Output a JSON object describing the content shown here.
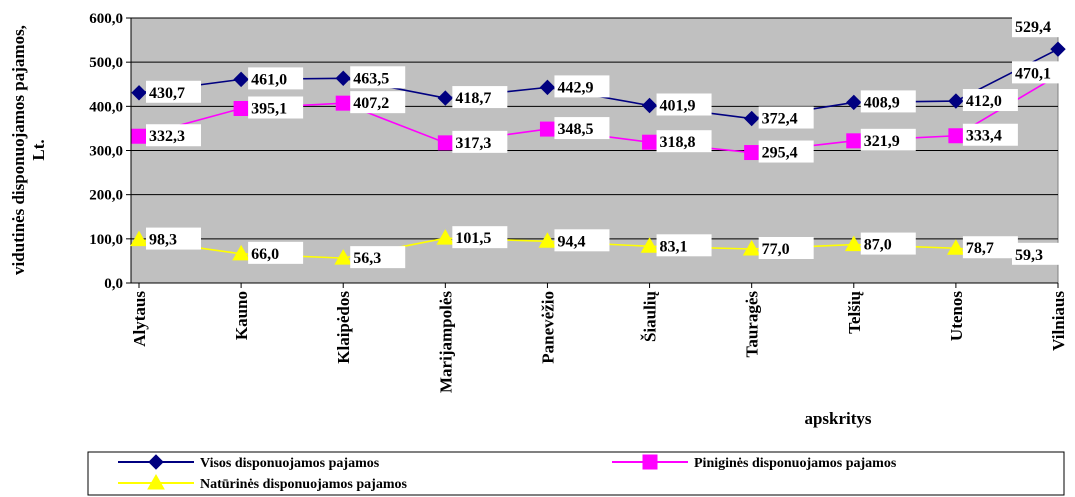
{
  "chart_data": {
    "type": "line",
    "title": "",
    "xlabel": "apskritys",
    "ylabel_line1": "vidutinės disponuojamos pajamos,",
    "ylabel_line2": "Lt.",
    "ylim": [
      0,
      600
    ],
    "yticks": [
      "0,0",
      "100,0",
      "200,0",
      "300,0",
      "400,0",
      "500,0",
      "600,0"
    ],
    "grid": true,
    "legend_position": "bottom",
    "categories": [
      "Alytaus",
      "Kauno",
      "Klaipėdos",
      "Marijampolės",
      "Panevėžio",
      "Šiaulių",
      "Tauragės",
      "Telšių",
      "Utenos",
      "Vilniaus"
    ],
    "series": [
      {
        "name": "Visos disponuojamos pajamos",
        "color": "#000080",
        "marker": "diamond",
        "values": [
          430.7,
          461.0,
          463.5,
          418.7,
          442.9,
          401.9,
          372.4,
          408.9,
          412.0,
          529.4
        ],
        "labels": [
          "430,7",
          "461,0",
          "463,5",
          "418,7",
          "442,9",
          "401,9",
          "372,4",
          "408,9",
          "412,0",
          "529,4"
        ]
      },
      {
        "name": "Piniginės disponuojamos pajamos",
        "color": "#ff00ff",
        "marker": "square",
        "values": [
          332.3,
          395.1,
          407.2,
          317.3,
          348.5,
          318.8,
          295.4,
          321.9,
          333.4,
          470.1
        ],
        "labels": [
          "332,3",
          "395,1",
          "407,2",
          "317,3",
          "348,5",
          "318,8",
          "295,4",
          "321,9",
          "333,4",
          "470,1"
        ]
      },
      {
        "name": "Natūrinės disponuojamos pajamos",
        "color": "#ffff00",
        "marker": "triangle",
        "values": [
          98.3,
          66.0,
          56.3,
          101.5,
          94.4,
          83.1,
          77.0,
          87.0,
          78.7,
          59.3
        ],
        "labels": [
          "98,3",
          "66,0",
          "56,3",
          "101,5",
          "94,4",
          "83,1",
          "77,0",
          "87,0",
          "78,7",
          "59,3"
        ]
      }
    ]
  }
}
